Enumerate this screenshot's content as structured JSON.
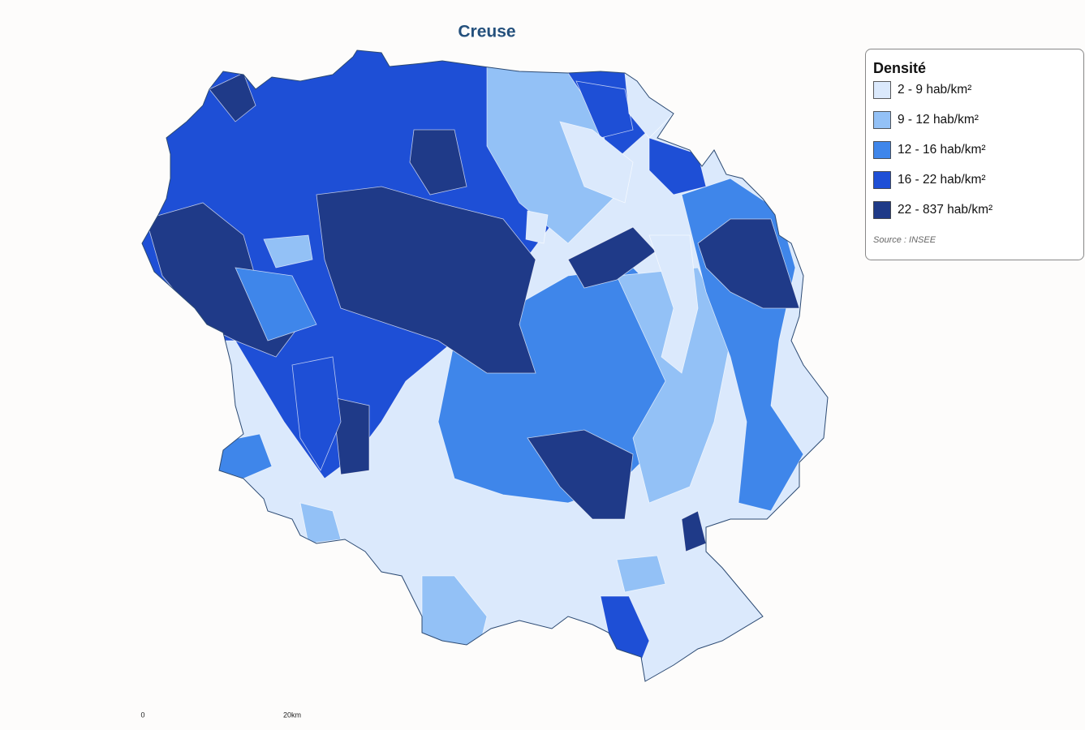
{
  "title": "Creuse",
  "legend": {
    "title": "Densité",
    "items": [
      {
        "label": "2 - 9 hab/km²",
        "color": "#dbe9fc"
      },
      {
        "label": "9 - 12 hab/km²",
        "color": "#93c1f6"
      },
      {
        "label": "12 - 16 hab/km²",
        "color": "#3f86ea"
      },
      {
        "label": "16 - 22 hab/km²",
        "color": "#1e4fd6"
      },
      {
        "label": "22 - 837 hab/km²",
        "color": "#1f3a88"
      }
    ],
    "source": "Source : INSEE"
  },
  "scale": {
    "start": "0",
    "end": "20km"
  }
}
